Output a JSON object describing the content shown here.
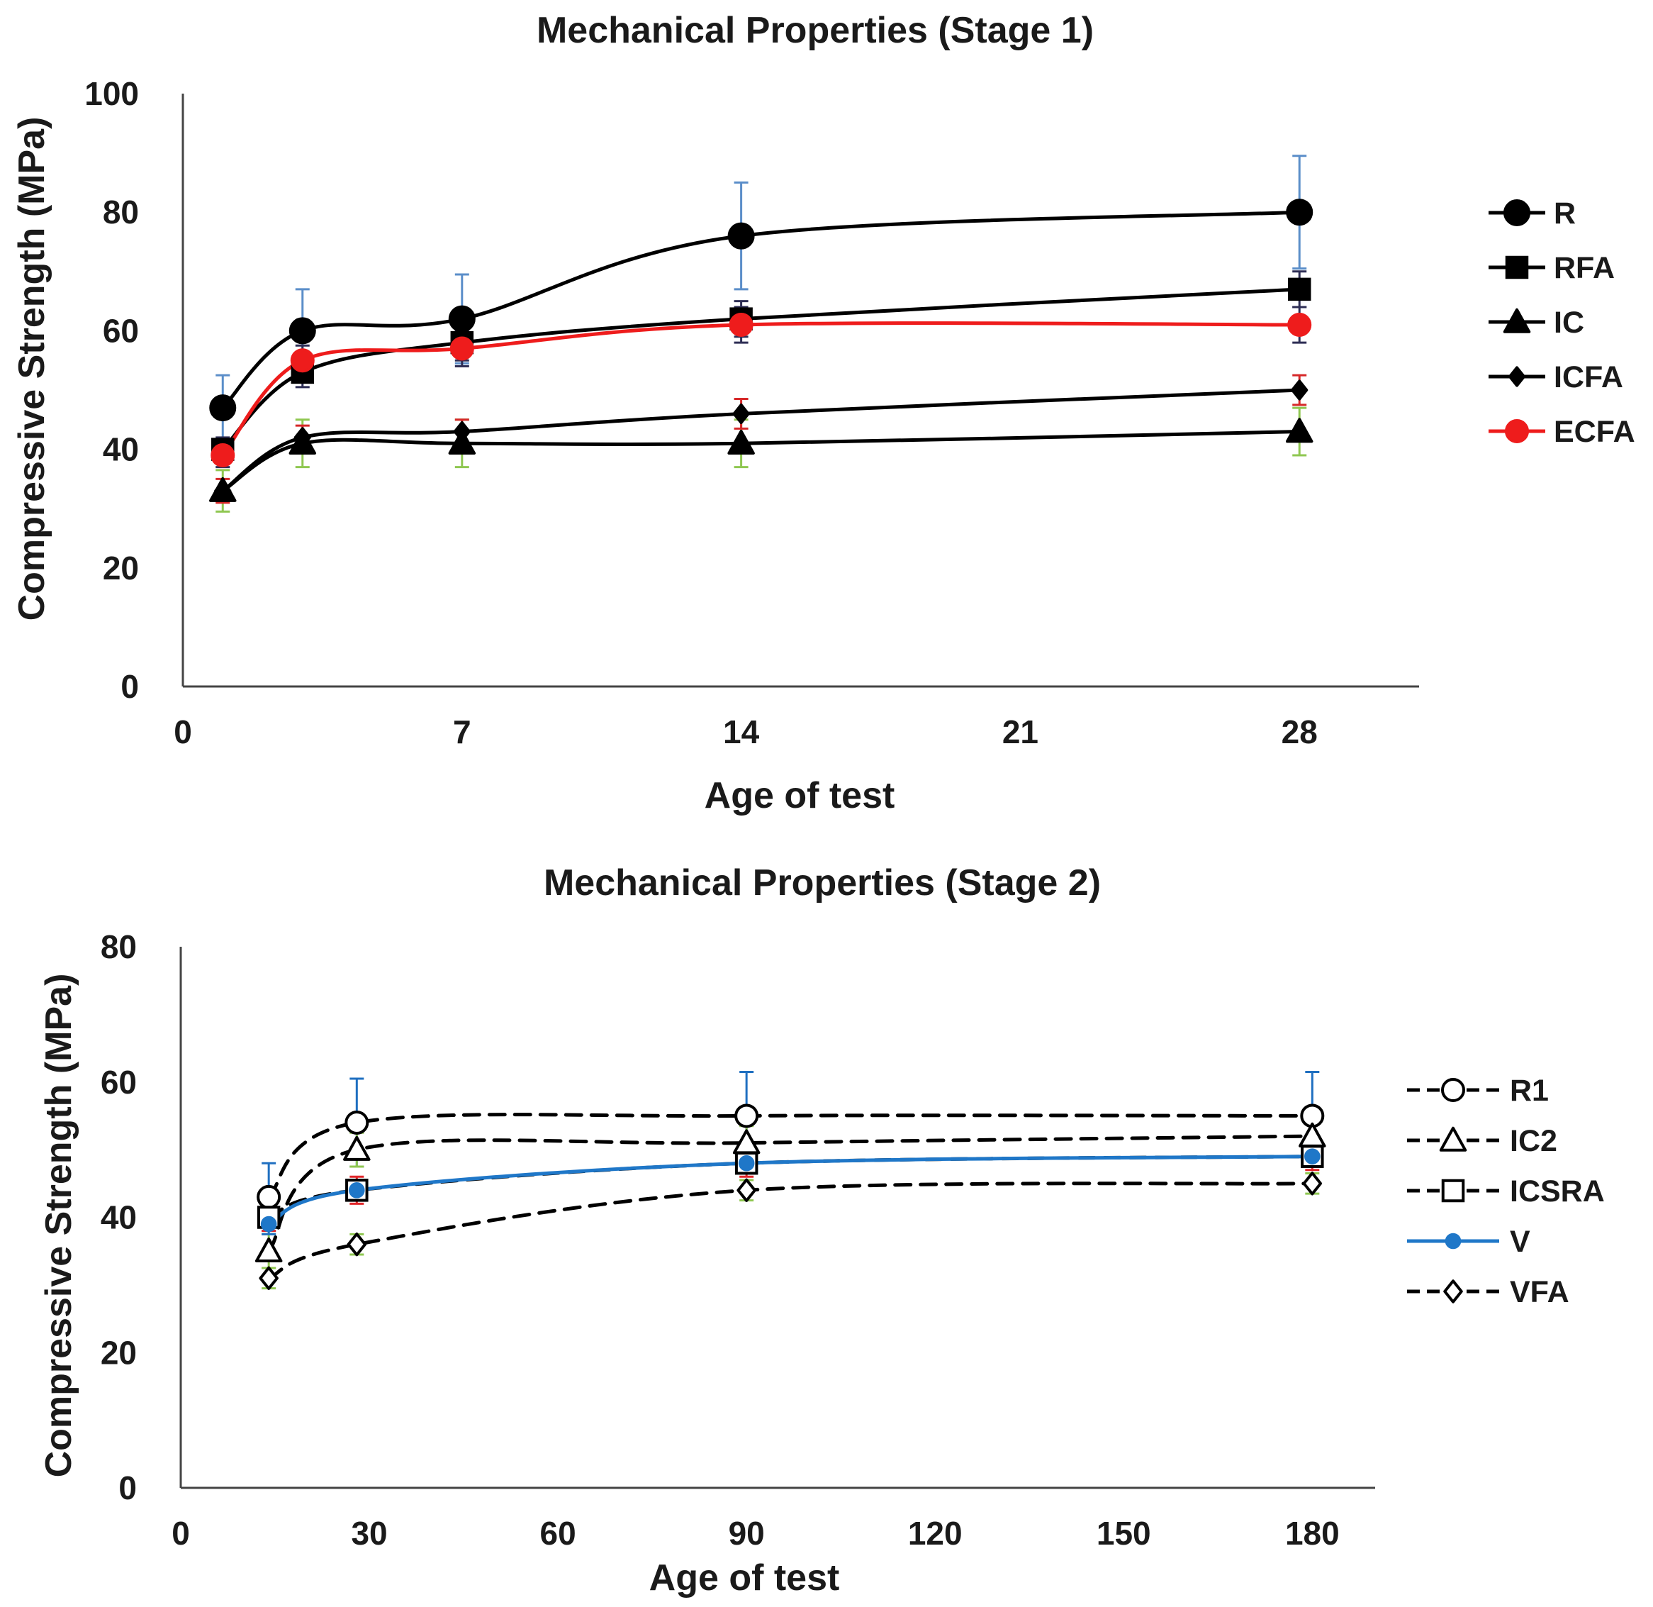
{
  "chart_data": [
    {
      "type": "line",
      "title": "Mechanical Properties (Stage 1)",
      "xlabel": "Age of test",
      "ylabel": "Compressive Strength (MPa)",
      "xlim": [
        0,
        31
      ],
      "ylim": [
        0,
        100
      ],
      "xticks": [
        0,
        7,
        14,
        21,
        28
      ],
      "yticks": [
        0,
        20,
        40,
        60,
        80,
        100
      ],
      "legend_position": "right",
      "x": [
        1,
        3,
        7,
        14,
        28
      ],
      "series": [
        {
          "name": "R",
          "color": "#000000",
          "marker": "circle",
          "fill": "filled",
          "dash": "solid",
          "values": [
            47,
            60,
            62,
            76,
            80
          ],
          "error": [
            5.5,
            7,
            7.5,
            9,
            9.5
          ],
          "error_color": "#5b8ec9"
        },
        {
          "name": "RFA",
          "color": "#000000",
          "marker": "square",
          "fill": "filled",
          "dash": "solid",
          "values": [
            40,
            53,
            58,
            62,
            67
          ],
          "error": [
            2,
            2.5,
            3,
            3,
            3
          ],
          "error_color": "#2e2e55"
        },
        {
          "name": "IC",
          "color": "#000000",
          "marker": "triangle",
          "fill": "filled",
          "dash": "solid",
          "values": [
            33,
            41,
            41,
            41,
            43
          ],
          "error": [
            3.5,
            4,
            4,
            4,
            4
          ],
          "error_color": "#8fc751"
        },
        {
          "name": "ICFA",
          "color": "#000000",
          "marker": "diamond",
          "fill": "filled",
          "dash": "solid",
          "values": [
            33,
            42,
            43,
            46,
            50
          ],
          "error": [
            2,
            2,
            2,
            2.5,
            2.5
          ],
          "error_color": "#d62728"
        },
        {
          "name": "ECFA",
          "color": "#ee1c1c",
          "marker": "circle",
          "fill": "filled",
          "dash": "solid",
          "values": [
            39,
            55,
            57,
            61,
            61
          ],
          "error": [
            2,
            2.5,
            3,
            3,
            3
          ],
          "error_color": "#2e2e55"
        }
      ]
    },
    {
      "type": "line",
      "title": "Mechanical Properties (Stage 2)",
      "xlabel": "Age of test",
      "ylabel": "Compressive Strength (MPa)",
      "xlim": [
        0,
        190
      ],
      "ylim": [
        0,
        80
      ],
      "xticks": [
        0,
        30,
        60,
        90,
        120,
        150,
        180
      ],
      "yticks": [
        0,
        20,
        40,
        60,
        80
      ],
      "legend_position": "right",
      "x": [
        14,
        28,
        90,
        180
      ],
      "series": [
        {
          "name": "R1",
          "color": "#000000",
          "marker": "circle",
          "fill": "open",
          "dash": "dashed",
          "values": [
            43,
            54,
            55,
            55
          ],
          "error": [
            5,
            6.5,
            6.5,
            6.5
          ],
          "error_color": "#1f6fc0"
        },
        {
          "name": "IC2",
          "color": "#000000",
          "marker": "triangle",
          "fill": "open",
          "dash": "dashed",
          "values": [
            35,
            50,
            51,
            52
          ],
          "error": [
            2.5,
            2.5,
            2.5,
            2.5
          ],
          "error_color": "#8fc751"
        },
        {
          "name": "ICSRA",
          "color": "#000000",
          "marker": "square",
          "fill": "open",
          "dash": "dashed",
          "values": [
            40,
            44,
            48,
            49
          ],
          "error": [
            2,
            2,
            2,
            2
          ],
          "error_color": "#e0262a"
        },
        {
          "name": "V",
          "color": "#1f77c8",
          "marker": "circle-small",
          "fill": "filled",
          "dash": "solid",
          "values": [
            39,
            44,
            48,
            49
          ],
          "error": [
            1.5,
            1.5,
            1.5,
            1.5
          ],
          "error_color": "#1f6fc0"
        },
        {
          "name": "VFA",
          "color": "#000000",
          "marker": "diamond",
          "fill": "open",
          "dash": "dashed",
          "values": [
            31,
            36,
            44,
            45
          ],
          "error": [
            1.5,
            1.5,
            1.5,
            1.5
          ],
          "error_color": "#8fc751"
        }
      ]
    }
  ]
}
